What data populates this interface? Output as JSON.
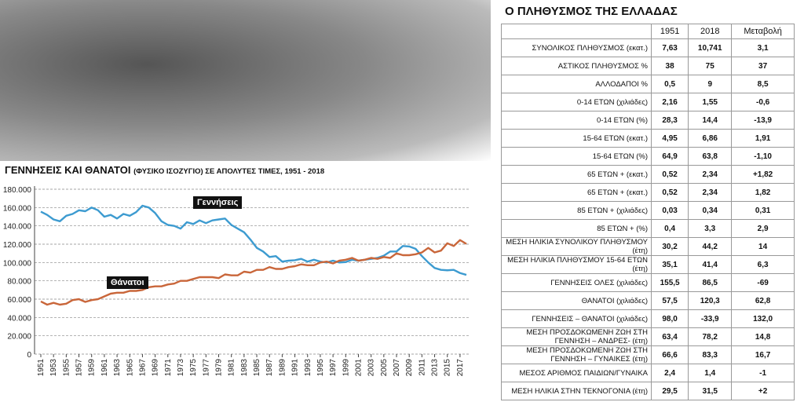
{
  "chart_data": {
    "type": "line",
    "title": "ΓΕΝΝΗΣΕΙΣ ΚΑΙ ΘΑΝΑΤΟΙ",
    "subtitle": "(ΦΥΣΙΚΟ ΙΣΟΖΥΓΙΟ) ΣΕ ΑΠΟΛΥΤΕΣ ΤΙΜΕΣ, 1951 - 2018",
    "x": [
      1951,
      1952,
      1953,
      1954,
      1955,
      1956,
      1957,
      1958,
      1959,
      1960,
      1961,
      1962,
      1963,
      1964,
      1965,
      1966,
      1967,
      1968,
      1969,
      1970,
      1971,
      1972,
      1973,
      1974,
      1975,
      1976,
      1977,
      1978,
      1979,
      1980,
      1981,
      1982,
      1983,
      1984,
      1985,
      1986,
      1987,
      1988,
      1989,
      1990,
      1991,
      1992,
      1993,
      1994,
      1995,
      1996,
      1997,
      1998,
      1999,
      2000,
      2001,
      2002,
      2003,
      2004,
      2005,
      2006,
      2007,
      2008,
      2009,
      2010,
      2011,
      2012,
      2013,
      2014,
      2015,
      2016,
      2017,
      2018
    ],
    "series": [
      {
        "name": "Γεννήσεις",
        "color": "#3d9bd0",
        "values": [
          155500,
          152000,
          147000,
          145000,
          151000,
          153000,
          157000,
          156000,
          160000,
          157000,
          150000,
          152000,
          148000,
          153000,
          151000,
          155000,
          162000,
          160000,
          154000,
          145000,
          141000,
          140000,
          137000,
          144000,
          142000,
          146000,
          143000,
          146000,
          147000,
          148000,
          141000,
          137000,
          133000,
          125000,
          116000,
          112000,
          106000,
          107000,
          101000,
          102000,
          102500,
          104000,
          101000,
          103000,
          101000,
          100000,
          102000,
          100000,
          100500,
          103000,
          102000,
          103000,
          104000,
          105000,
          107500,
          112000,
          112000,
          118000,
          117500,
          115000,
          107000,
          100000,
          94000,
          92000,
          91500,
          92000,
          88500,
          86500
        ]
      },
      {
        "name": "Θάνατοι",
        "color": "#c9663a",
        "values": [
          57500,
          54000,
          56000,
          54000,
          55000,
          59000,
          60000,
          57000,
          59000,
          60000,
          63000,
          66000,
          67000,
          67000,
          69000,
          69000,
          70000,
          73000,
          74000,
          74000,
          76000,
          77000,
          80000,
          80000,
          82000,
          84000,
          84000,
          84000,
          83000,
          87000,
          86000,
          86000,
          90000,
          89000,
          92000,
          92000,
          95000,
          93000,
          93000,
          95000,
          96000,
          98000,
          97000,
          97000,
          100000,
          101000,
          99000,
          102000,
          103000,
          105000,
          102000,
          103000,
          105000,
          104000,
          106000,
          105000,
          110000,
          108000,
          108000,
          109000,
          111000,
          116000,
          111000,
          113000,
          121000,
          118000,
          124500,
          120300
        ]
      }
    ],
    "xlim": [
      1951,
      2018
    ],
    "xticks": [
      1951,
      1953,
      1955,
      1957,
      1959,
      1961,
      1963,
      1965,
      1967,
      1969,
      1971,
      1973,
      1975,
      1977,
      1979,
      1981,
      1983,
      1985,
      1987,
      1989,
      1991,
      1993,
      1995,
      1997,
      1999,
      2001,
      2003,
      2005,
      2007,
      2009,
      2011,
      2013,
      2015,
      2017
    ],
    "ylim": [
      0,
      180000
    ],
    "yticks": [
      0,
      {
        "value": 20000,
        "label": "20.000"
      },
      {
        "value": 40000,
        "label": "40.000"
      },
      {
        "value": 60000,
        "label": "60.000"
      },
      {
        "value": 80000,
        "label": "80.000"
      },
      {
        "value": 100000,
        "label": "100.000"
      },
      {
        "value": 120000,
        "label": "120.000"
      },
      {
        "value": 140000,
        "label": "140.000"
      },
      {
        "value": 160000,
        "label": "160.000"
      },
      {
        "value": 180000,
        "label": "180.000"
      }
    ],
    "grid": true
  },
  "table": {
    "title": "Ο ΠΛΗΘΥΣΜΟΣ ΤΗΣ ΕΛΛΑΔΑΣ",
    "columns": [
      "1951",
      "2018",
      "Μεταβολή"
    ],
    "rows": [
      [
        "ΣΥΝΟΛΙΚΟΣ ΠΛΗΘΥΣΜΟΣ (εκατ.)",
        "7,63",
        "10,741",
        "3,1"
      ],
      [
        "ΑΣΤΙΚΟΣ ΠΛΗΘΥΣΜΟΣ %",
        "38",
        "75",
        "37"
      ],
      [
        "ΑΛΛΟΔΑΠΟΙ %",
        "0,5",
        "9",
        "8,5"
      ],
      [
        "0-14 ΕΤΩΝ (χιλιάδες)",
        "2,16",
        "1,55",
        "-0,6"
      ],
      [
        "0-14 ΕΤΩΝ (%)",
        "28,3",
        "14,4",
        "-13,9"
      ],
      [
        "15-64 ΕΤΩΝ (εκατ.)",
        "4,95",
        "6,86",
        "1,91"
      ],
      [
        "15-64 ΕΤΩΝ (%)",
        "64,9",
        "63,8",
        "-1,10"
      ],
      [
        "65 ΕΤΩΝ + (εκατ.)",
        "0,52",
        "2,34",
        "+1,82"
      ],
      [
        "65 ΕΤΩΝ + (εκατ.)",
        "0,52",
        "2,34",
        "1,82"
      ],
      [
        "85 ΕΤΩΝ + (χιλιάδες)",
        "0,03",
        "0,34",
        "0,31"
      ],
      [
        "85 ΕΤΩΝ + (%)",
        "0,4",
        "3,3",
        "2,9"
      ],
      [
        "ΜΕΣΗ ΗΛΙΚΙΑ ΣΥΝΟΛΙΚΟΥ ΠΛΗΘΥΣΜΟΥ (έτη)",
        "30,2",
        "44,2",
        "14"
      ],
      [
        "ΜΕΣΗ ΗΛΙΚΙΑ ΠΛΗΘΥΣΜΟΥ 15-64 ΕΤΩΝ (έτη)",
        "35,1",
        "41,4",
        "6,3"
      ],
      [
        "ΓΕΝΝΗΣΕΙΣ ΟΛΕΣ (χιλιάδες)",
        "155,5",
        "86,5",
        "-69"
      ],
      [
        "ΘΑΝΑΤΟΙ (χιλιάδες)",
        "57,5",
        "120,3",
        "62,8"
      ],
      [
        "ΓΕΝΝΗΣΕΙΣ – ΘΑΝΑΤΟΙ (χιλιάδες)",
        "98,0",
        "-33,9",
        "132,0"
      ],
      [
        "ΜΕΣΗ ΠΡΟΣΔΟΚΩΜΕΝΗ ΖΩΗ ΣΤΗ ΓΕΝΝΗΣΗ – ΑΝΔΡΕΣ- (έτη)",
        "63,4",
        "78,2",
        "14,8"
      ],
      [
        "ΜΕΣΗ ΠΡΟΣΔΟΚΩΜΕΝΗ ΖΩΗ ΣΤΗ ΓΕΝΝΗΣΗ – ΓΥΝΑΙΚΕΣ (έτη)",
        "66,6",
        "83,3",
        "16,7"
      ],
      [
        "ΜΕΣΟΣ ΑΡΙΘΜΟΣ ΠΑΙΔΙΩΝ/ΓΥΝΑΙΚΑ",
        "2,4",
        "1,4",
        "-1"
      ],
      [
        "ΜΕΣΗ ΗΛΙΚΙΑ ΣΤΗΝ ΤΕΚΝΟΓΟΝΙΑ (έτη)",
        "29,5",
        "31,5",
        "+2"
      ]
    ]
  }
}
